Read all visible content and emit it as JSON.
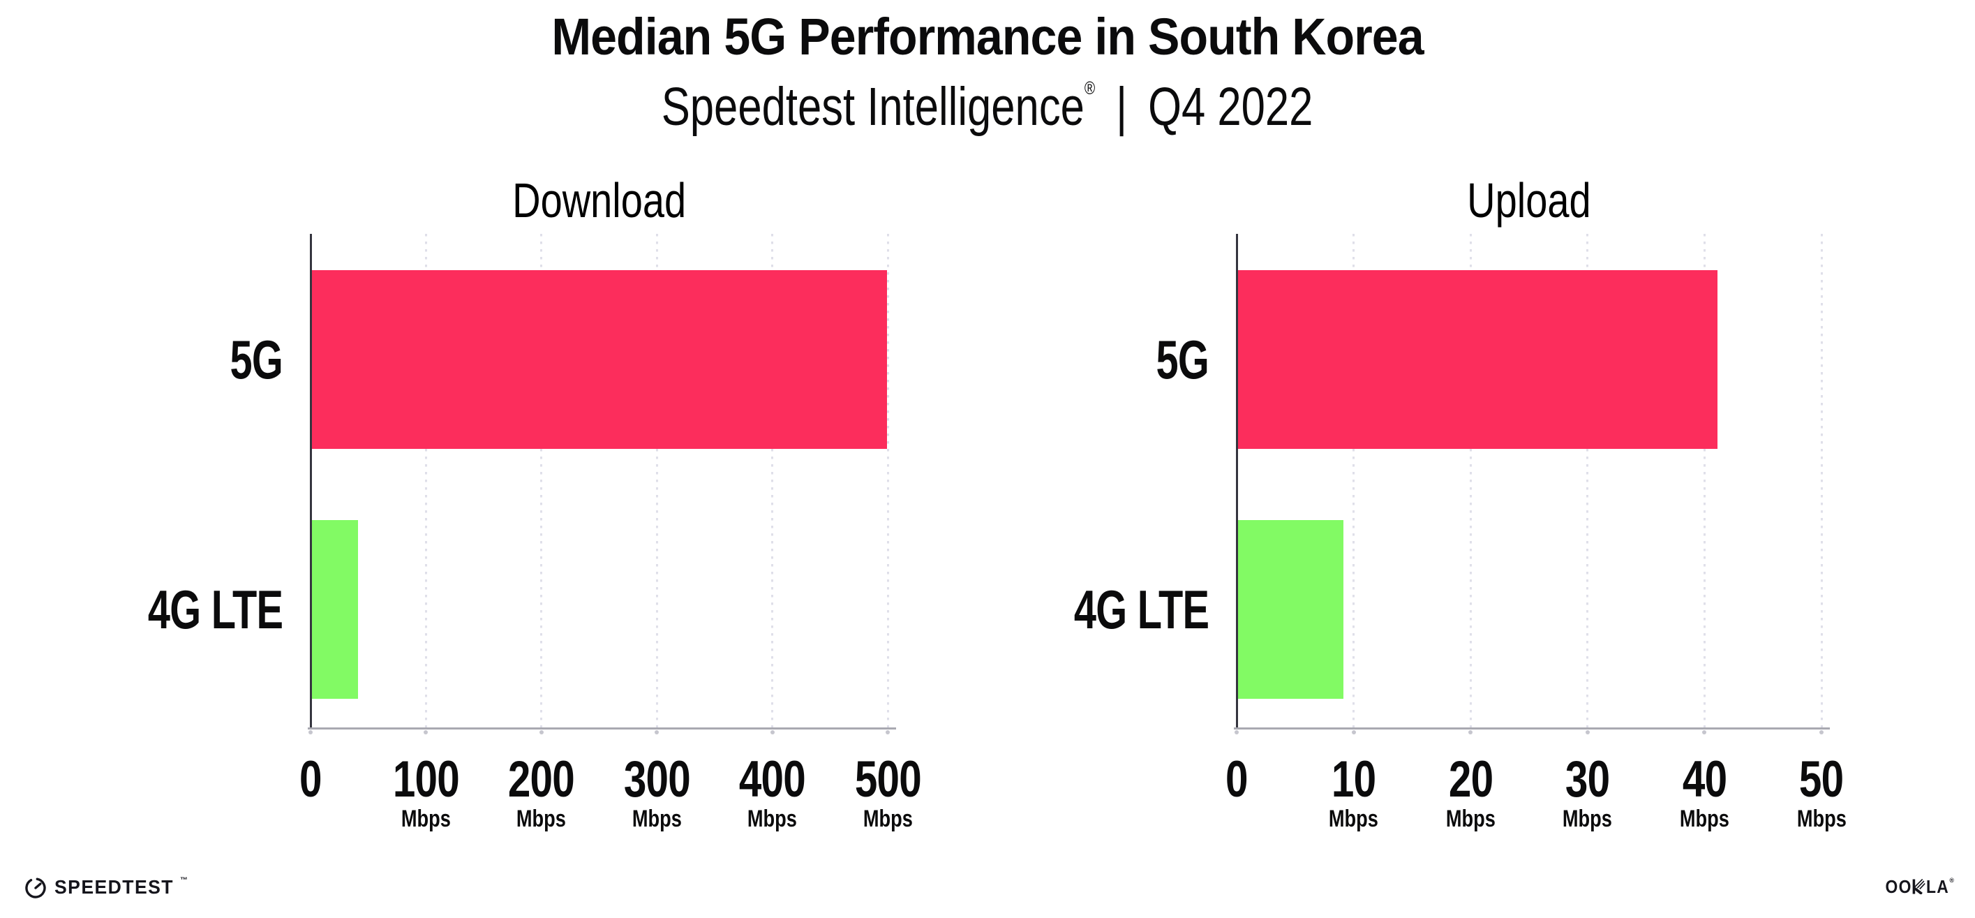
{
  "header": {
    "title": "Median 5G Performance in South Korea",
    "subtitle_brand": "Speedtest Intelligence",
    "subtitle_reg_mark": "®",
    "subtitle_separator": "|",
    "subtitle_period": "Q4 2022"
  },
  "chart_data": [
    {
      "type": "bar",
      "orientation": "horizontal",
      "title": "Download",
      "categories": [
        "5G",
        "4G LTE"
      ],
      "values": [
        498,
        40
      ],
      "unit": "Mbps",
      "xlim": [
        0,
        500
      ],
      "ticks": [
        0,
        100,
        200,
        300,
        400,
        500
      ],
      "tick_unit_label": "Mbps",
      "tick_unit_shown_for_zero": false,
      "bar_colors": [
        "#FC2D5C",
        "#82FA64"
      ],
      "grid": "dotted-vertical",
      "legend": "none"
    },
    {
      "type": "bar",
      "orientation": "horizontal",
      "title": "Upload",
      "categories": [
        "5G",
        "4G LTE"
      ],
      "values": [
        41,
        9
      ],
      "unit": "Mbps",
      "xlim": [
        0,
        50
      ],
      "ticks": [
        0,
        10,
        20,
        30,
        40,
        50
      ],
      "tick_unit_label": "Mbps",
      "tick_unit_shown_for_zero": false,
      "bar_colors": [
        "#FC2D5C",
        "#82FA64"
      ],
      "grid": "dotted-vertical",
      "legend": "none"
    }
  ],
  "footer": {
    "speedtest_logo_text": "SPEEDTEST",
    "speedtest_trademark": "™",
    "ookla_logo_text": "OOKLA",
    "ookla_reg_mark": "®"
  },
  "colors": {
    "bar_5g": "#FC2D5C",
    "bar_4g_lte": "#82FA64",
    "gridline": "#DFDFE9",
    "x_axis_line": "#A9A9B1",
    "y_axis_line": "#35353F",
    "text": "#0B0B0C",
    "background": "#FFFFFF"
  }
}
